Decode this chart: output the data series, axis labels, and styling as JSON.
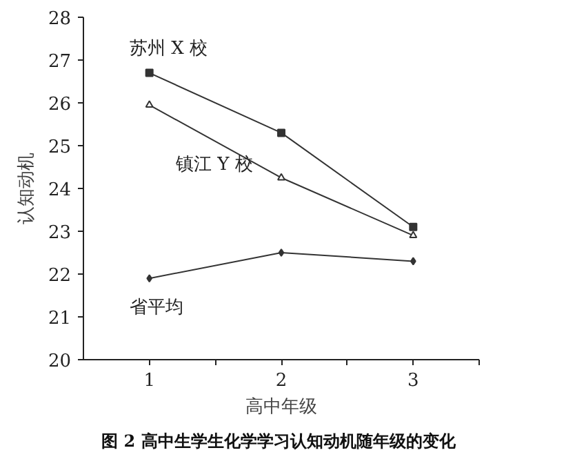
{
  "chart_data": {
    "type": "line",
    "title": "图 2  高中生学生化学学习认知动机随年级的变化",
    "xlabel": "高中年级",
    "ylabel": "认知动机",
    "x": [
      1,
      2,
      3
    ],
    "xlim": [
      0.5,
      3.5
    ],
    "xticks": [
      1,
      {
        "value": 1.5,
        "label": null
      },
      2,
      {
        "value": 2.5,
        "label": null
      },
      3,
      {
        "value": 3.5,
        "label": null
      }
    ],
    "ylim": [
      20,
      28
    ],
    "yticks": [
      20,
      21,
      22,
      23,
      24,
      25,
      26,
      27,
      28
    ],
    "grid": false,
    "legend": false,
    "series": [
      {
        "name": "苏州 X 校",
        "color": "#333333",
        "marker": "square",
        "values": [
          26.7,
          25.3,
          23.1
        ]
      },
      {
        "name": "镇江 Y 校",
        "color": "#333333",
        "marker": "triangle",
        "values": [
          25.95,
          24.25,
          22.9
        ]
      },
      {
        "name": "省平均",
        "color": "#333333",
        "marker": "diamond",
        "values": [
          21.9,
          22.5,
          22.3
        ]
      }
    ]
  }
}
